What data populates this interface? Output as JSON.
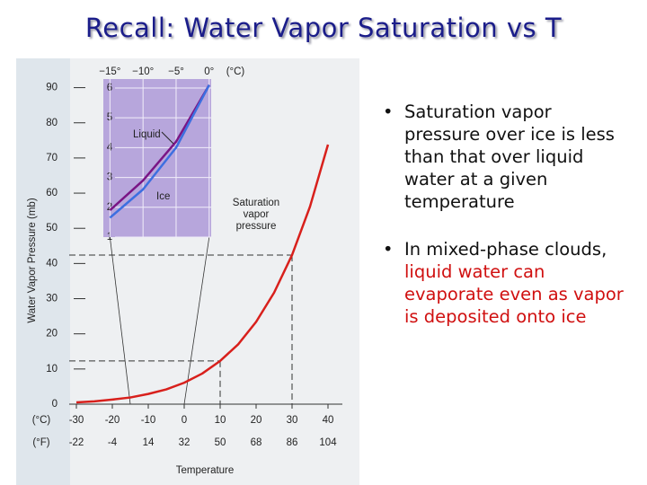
{
  "title": "Recall: Water Vapor Saturation vs T",
  "bullets": [
    [
      "Saturation vapor pressure over ice is less than that over liquid water at a given temperature"
    ],
    [
      "In mixed-phase clouds,",
      "liquid water can evaporate even as vapor is deposited onto ice"
    ]
  ],
  "chart_data": [
    {
      "type": "line",
      "x_label": "Temperature",
      "y_label": "Water Vapor Pressure (mb)",
      "x_unit_label": "(°C)",
      "x2_unit_label": "(°F)",
      "annotation": [
        "Saturation",
        "vapor",
        "pressure"
      ],
      "x": [
        -30,
        -25,
        -20,
        -15,
        -10,
        -5,
        0,
        5,
        10,
        15,
        20,
        25,
        30,
        35,
        40
      ],
      "series": [
        {
          "name": "Saturation vapor pressure",
          "color": "#d8201c",
          "values": [
            0.5,
            0.8,
            1.3,
            1.9,
            2.9,
            4.2,
            6.1,
            8.7,
            12.3,
            17.0,
            23.4,
            31.7,
            42.4,
            56.2,
            73.8
          ]
        }
      ],
      "xlim": [
        -32,
        44
      ],
      "ylim": [
        0,
        95
      ],
      "xticks": [
        -30,
        -20,
        -10,
        0,
        10,
        20,
        30,
        40
      ],
      "x2ticks": [
        -22,
        -4,
        14,
        32,
        50,
        68,
        86,
        104
      ],
      "yticks": [
        0,
        10,
        20,
        30,
        40,
        50,
        60,
        70,
        80,
        90
      ],
      "reference_points": [
        {
          "x": 10,
          "y": 12.3
        },
        {
          "x": 30,
          "y": 42.4
        }
      ]
    },
    {
      "type": "line",
      "x": [
        -15,
        -10,
        -5,
        0
      ],
      "series": [
        {
          "name": "Liquid",
          "color": "#7a1585",
          "values": [
            1.9,
            2.9,
            4.2,
            6.1
          ]
        },
        {
          "name": "Ice",
          "color": "#3d6fe0",
          "values": [
            1.65,
            2.6,
            4.0,
            6.1
          ]
        }
      ],
      "xlim": [
        -16,
        0.3
      ],
      "ylim": [
        1,
        6.3
      ],
      "xticks": [
        {
          "value": -15,
          "label": "−15°"
        },
        {
          "value": -10,
          "label": "−10°"
        },
        {
          "value": -5,
          "label": "−5°"
        },
        {
          "value": 0,
          "label": "0°"
        }
      ],
      "x_unit_label": "(°C)",
      "yticks": [
        1,
        2,
        3,
        4,
        5,
        6
      ],
      "grid": true
    }
  ]
}
